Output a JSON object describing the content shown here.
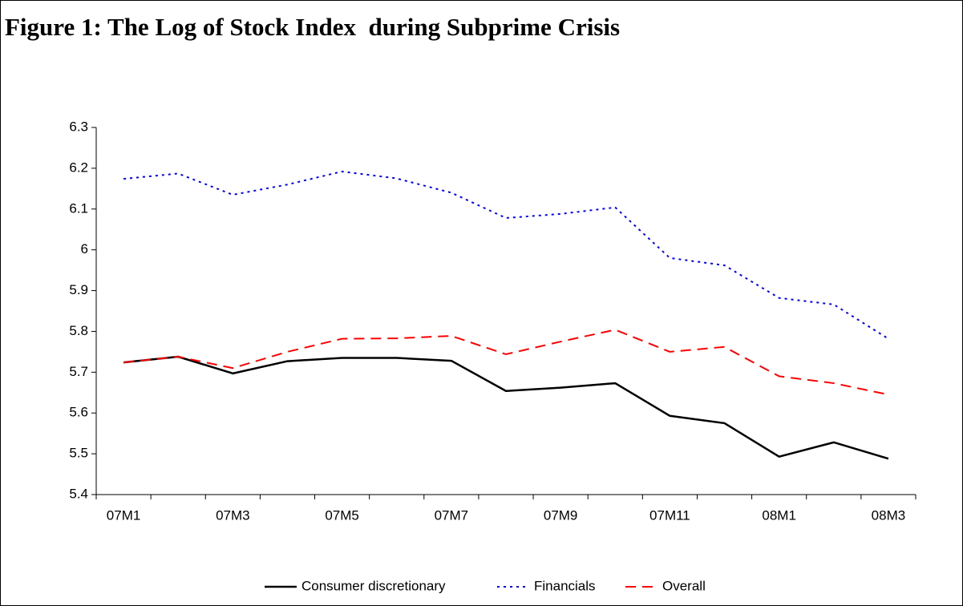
{
  "chart_data": {
    "type": "line",
    "title": "Figure 1: The Log of Stock Index  during Subprime Crisis",
    "categories": [
      "07M1",
      null,
      "07M3",
      null,
      "07M5",
      null,
      "07M7",
      null,
      "07M9",
      null,
      "07M11",
      null,
      "08M1",
      null,
      "08M3"
    ],
    "series": [
      {
        "name": "Consumer discretionary",
        "color": "#000000",
        "dash": "solid",
        "values": [
          5.724,
          5.738,
          5.697,
          5.727,
          5.735,
          5.735,
          5.728,
          5.654,
          5.662,
          5.673,
          5.593,
          5.575,
          5.493,
          5.528,
          5.488
        ]
      },
      {
        "name": "Financials",
        "color": "#0000ff",
        "dash": "dotted",
        "values": [
          6.174,
          6.187,
          6.135,
          6.16,
          6.192,
          6.175,
          6.14,
          6.078,
          6.088,
          6.104,
          5.98,
          5.962,
          5.882,
          5.866,
          5.782
        ]
      },
      {
        "name": "Overall",
        "color": "#ff0000",
        "dash": "dashed",
        "values": [
          5.724,
          5.738,
          5.71,
          5.75,
          5.782,
          5.783,
          5.789,
          5.744,
          5.775,
          5.804,
          5.75,
          5.762,
          5.69,
          5.673,
          5.645
        ]
      }
    ],
    "ylim": [
      5.4,
      6.3
    ],
    "yticks": [
      5.4,
      5.5,
      5.6,
      5.7,
      5.8,
      5.9,
      6,
      6.1,
      6.2,
      6.3
    ],
    "grid": false,
    "legend": "bottom"
  }
}
